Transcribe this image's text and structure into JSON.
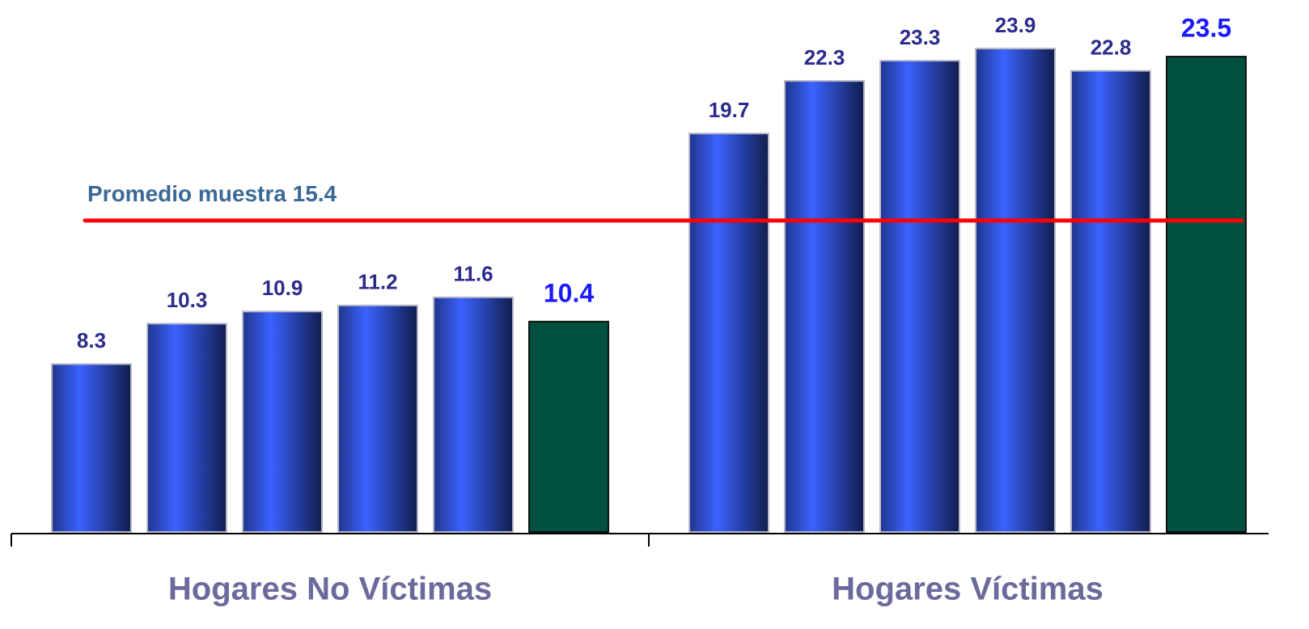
{
  "chart_data": {
    "type": "bar",
    "categories": [
      "Hogares No Víctimas",
      "Hogares Víctimas"
    ],
    "series": [
      {
        "color": "#3a62ff",
        "label_color": "#2b2b8c",
        "values": [
          8.3,
          19.7
        ]
      },
      {
        "color": "#3a62ff",
        "label_color": "#2b2b8c",
        "values": [
          10.3,
          22.3
        ]
      },
      {
        "color": "#3a62ff",
        "label_color": "#2b2b8c",
        "values": [
          10.9,
          23.3
        ]
      },
      {
        "color": "#3a62ff",
        "label_color": "#2b2b8c",
        "values": [
          11.2,
          23.9
        ]
      },
      {
        "color": "#3a62ff",
        "label_color": "#2b2b8c",
        "values": [
          11.6,
          22.8
        ]
      },
      {
        "color": "#005040",
        "label_color": "#1a1aff",
        "values": [
          10.4,
          23.5
        ]
      }
    ],
    "ylim": [
      0,
      26.3
    ],
    "reference_line": {
      "label": "Promedio muestra 15.4",
      "value": 15.4,
      "color": "#ff0000"
    }
  }
}
